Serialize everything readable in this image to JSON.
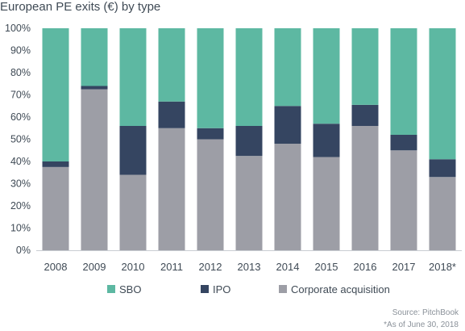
{
  "chart_data": {
    "type": "bar",
    "stacked": true,
    "title": "European PE exits (€) by type",
    "categories": [
      "2008",
      "2009",
      "2010",
      "2011",
      "2012",
      "2013",
      "2014",
      "2015",
      "2016",
      "2017",
      "2018*"
    ],
    "series": [
      {
        "name": "Corporate acquisition",
        "color": "#9d9ea6",
        "values": [
          37.5,
          72.5,
          34,
          55,
          50,
          42.5,
          48,
          42,
          56,
          45,
          33
        ]
      },
      {
        "name": "IPO",
        "color": "#354561",
        "values": [
          2.5,
          1.5,
          22,
          12,
          5,
          13.5,
          17,
          15,
          9.5,
          7,
          8
        ]
      },
      {
        "name": "SBO",
        "color": "#5db8a2",
        "values": [
          60,
          26,
          44,
          33,
          45,
          44,
          35,
          43,
          34.5,
          48,
          59
        ]
      }
    ],
    "legend_order": [
      "SBO",
      "IPO",
      "Corporate acquisition"
    ],
    "legend_position": "bottom",
    "ylim": [
      0,
      100
    ],
    "yticks": [
      "0%",
      "10%",
      "20%",
      "30%",
      "40%",
      "50%",
      "60%",
      "70%",
      "80%",
      "90%",
      "100%"
    ],
    "grid": false
  },
  "footer": {
    "source": "Source: PitchBook",
    "note": "*As of June 30, 2018"
  }
}
